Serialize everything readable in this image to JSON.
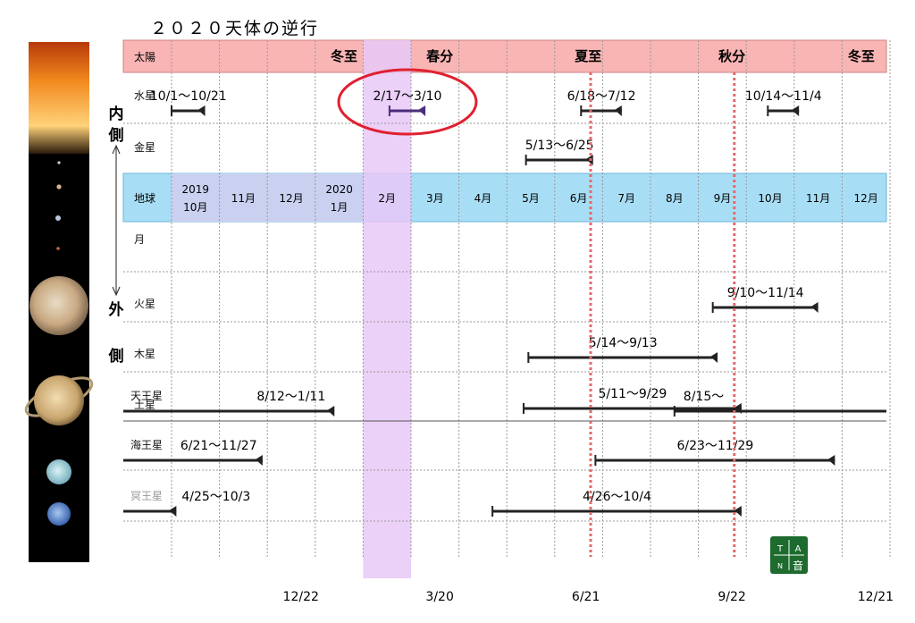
{
  "chart_data": {
    "type": "table",
    "title": "２０２０天体の逆行",
    "side_labels": {
      "inner": [
        "内",
        "側"
      ],
      "outer": [
        "外",
        "側"
      ]
    },
    "sun_row": {
      "label": "太陽",
      "events": [
        {
          "label": "冬至",
          "pos": 3.6
        },
        {
          "label": "春分",
          "pos": 5.6
        },
        {
          "label": "夏至",
          "pos": 8.7
        },
        {
          "label": "秋分",
          "pos": 11.7
        },
        {
          "label": "冬至",
          "pos": 14.4
        }
      ]
    },
    "earth_row": {
      "label": "地球",
      "months": [
        [
          "2019",
          "10月"
        ],
        [
          "11月"
        ],
        [
          "12月"
        ],
        [
          "2020",
          "1月"
        ],
        [
          "2月"
        ],
        [
          "3月"
        ],
        [
          "4月"
        ],
        [
          "5月"
        ],
        [
          "6月"
        ],
        [
          "7月"
        ],
        [
          "8月"
        ],
        [
          "9月"
        ],
        [
          "10月"
        ],
        [
          "11月"
        ],
        [
          "12月"
        ]
      ]
    },
    "highlight_month_index": 4,
    "solstice_lines": [
      {
        "pos": 8.75,
        "color": "#e06a6a"
      },
      {
        "pos": 11.75,
        "color": "#e06a6a"
      }
    ],
    "bottom_dates": [
      {
        "label": "12/22",
        "pos": 2.7
      },
      {
        "label": "3/20",
        "pos": 5.6
      },
      {
        "label": "6/21",
        "pos": 8.65
      },
      {
        "label": "9/22",
        "pos": 11.7
      },
      {
        "label": "12/21",
        "pos": 14.7
      }
    ],
    "rows": [
      {
        "name": "水星",
        "group": "inner",
        "segments": [
          {
            "label": "10/1〜10/21",
            "start": 0.0,
            "end": 0.7
          },
          {
            "label": "2/17〜3/10",
            "start": 4.55,
            "end": 5.3,
            "circled": true
          },
          {
            "label": "6/18〜7/12",
            "start": 8.55,
            "end": 9.4
          },
          {
            "label": "10/14〜11/4",
            "start": 12.45,
            "end": 13.1
          }
        ]
      },
      {
        "name": "金星",
        "group": "inner",
        "segments": [
          {
            "label": "5/13〜6/25",
            "start": 7.4,
            "end": 8.8
          }
        ]
      },
      {
        "name": "月",
        "group": "outer",
        "segments": []
      },
      {
        "name": "火星",
        "group": "outer",
        "segments": [
          {
            "label": "9/10〜11/14",
            "start": 11.3,
            "end": 13.5
          }
        ]
      },
      {
        "name": "木星",
        "group": "outer",
        "segments": [
          {
            "label": "5/14〜9/13",
            "start": 7.45,
            "end": 11.4
          }
        ]
      },
      {
        "name": "土星",
        "group": "outer",
        "segments": [
          {
            "label": "5/11〜9/29",
            "start": 7.35,
            "end": 11.9
          }
        ]
      },
      {
        "name": "天王星",
        "group": "outer",
        "segments": [
          {
            "label": "8/12〜1/11",
            "start": -1.0,
            "end": 3.4
          },
          {
            "label": "8/15〜",
            "start": 10.5,
            "end": 15.0
          }
        ]
      },
      {
        "name": "海王星",
        "group": "outer",
        "segments": [
          {
            "label": "6/21〜11/27",
            "start": -1.0,
            "end": 1.9
          },
          {
            "label": "6/23〜11/29",
            "start": 8.85,
            "end": 13.85
          }
        ]
      },
      {
        "name": "冥王星",
        "group": "outer",
        "name_color": "#999999",
        "segments": [
          {
            "label": "4/25〜10/3",
            "start": -1.0,
            "end": 0.1
          },
          {
            "label": "4/26〜10/4",
            "start": 6.7,
            "end": 11.9
          }
        ]
      }
    ],
    "logo_text": [
      "T",
      "A",
      "N",
      "音"
    ],
    "colors": {
      "sun_band": "#f9b4b4",
      "earth_band": "#a8def5",
      "earth_past": "#c9d0f0",
      "highlight": "#e7c8f7",
      "circle": "#e02030",
      "bar": "#222222",
      "circled_bar": "#4b2e7a",
      "logo": "#1d6b2e"
    }
  }
}
